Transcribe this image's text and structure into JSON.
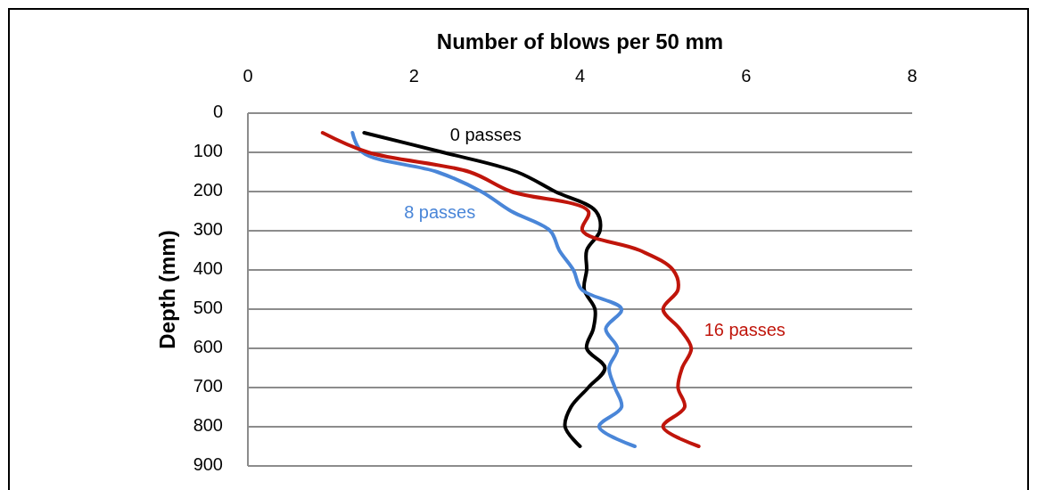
{
  "chart_data": {
    "type": "line",
    "xlabel": "Number of blows per 50 mm",
    "ylabel": "Depth (mm)",
    "xlim": [
      0,
      8
    ],
    "xticks": [
      0,
      2,
      4,
      6,
      8
    ],
    "ylim": [
      900,
      0
    ],
    "yticks": [
      0,
      100,
      200,
      300,
      400,
      500,
      600,
      700,
      800,
      900
    ],
    "grid": "y",
    "marker": "none",
    "line_style": "solid",
    "series": [
      {
        "name": "0 passes",
        "color": "#000000",
        "x": [
          1.4,
          2.35,
          3.24,
          3.7,
          4.19,
          4.24,
          4.08,
          4.08,
          4.05,
          4.18,
          4.16,
          4.08,
          4.3,
          4.1,
          3.89,
          3.82,
          4.0
        ],
        "values": [
          50,
          100,
          150,
          200,
          250,
          300,
          350,
          400,
          450,
          500,
          550,
          600,
          650,
          700,
          750,
          800,
          850
        ]
      },
      {
        "name": "8 passes",
        "color": "#4a86d8",
        "x": [
          1.26,
          1.38,
          2.28,
          2.81,
          3.17,
          3.64,
          3.75,
          3.92,
          4.02,
          4.5,
          4.31,
          4.45,
          4.35,
          4.42,
          4.5,
          4.23,
          4.66
        ],
        "values": [
          50,
          100,
          150,
          200,
          250,
          300,
          350,
          400,
          450,
          500,
          550,
          600,
          650,
          700,
          750,
          800,
          850
        ]
      },
      {
        "name": "16 passes",
        "color": "#c0150b",
        "x": [
          0.9,
          1.45,
          2.67,
          3.17,
          4.1,
          4.03,
          4.72,
          5.12,
          5.18,
          5.0,
          5.2,
          5.34,
          5.23,
          5.18,
          5.26,
          5.0,
          5.43
        ],
        "values": [
          50,
          100,
          150,
          200,
          250,
          300,
          350,
          400,
          450,
          500,
          550,
          600,
          650,
          700,
          750,
          800,
          850
        ]
      }
    ]
  }
}
